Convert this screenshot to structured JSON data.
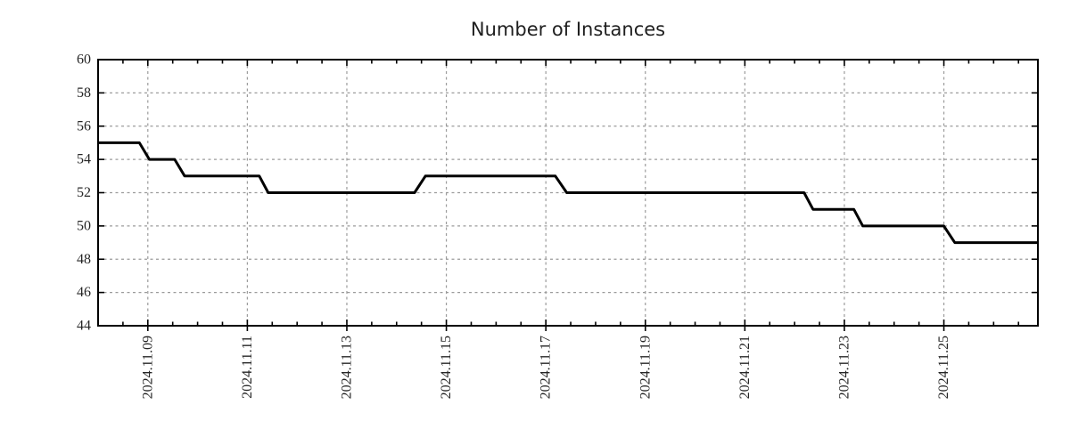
{
  "page": {
    "background": "#ffffff"
  },
  "chart_data": {
    "type": "line",
    "title": "Number of Instances",
    "xlabel": "",
    "ylabel": "",
    "x_unit": "date (November 2024, decimal day of month)",
    "x_range": [
      8.0,
      26.89
    ],
    "y_range": [
      44,
      60
    ],
    "x_major_ticks": [
      9,
      11,
      13,
      15,
      17,
      19,
      21,
      23,
      25
    ],
    "x_tick_labels": [
      "2024.11.09",
      "2024.11.11",
      "2024.11.13",
      "2024.11.15",
      "2024.11.17",
      "2024.11.19",
      "2024.11.21",
      "2024.11.23",
      "2024.11.25"
    ],
    "x_minor_tick_step": 0.5,
    "y_major_ticks": [
      44,
      46,
      48,
      50,
      52,
      54,
      56,
      58,
      60
    ],
    "grid": "dotted gray lines at major ticks, closed box border, mirrored inward ticks",
    "legend": "none",
    "style": {
      "line_color": "#000000",
      "line_width": 3,
      "grid_color": "#9b9b9b",
      "border_color": "#000000",
      "text_color": "#262626",
      "background": "#ffffff"
    },
    "series": [
      {
        "name": "instances",
        "points": [
          [
            8.0,
            55
          ],
          [
            8.83,
            55
          ],
          [
            9.03,
            54
          ],
          [
            9.54,
            54
          ],
          [
            9.74,
            53
          ],
          [
            11.24,
            53
          ],
          [
            11.42,
            52
          ],
          [
            14.36,
            52
          ],
          [
            14.58,
            53
          ],
          [
            17.19,
            53
          ],
          [
            17.42,
            52
          ],
          [
            22.19,
            52
          ],
          [
            22.37,
            51
          ],
          [
            23.19,
            51
          ],
          [
            23.37,
            50
          ],
          [
            25.0,
            50
          ],
          [
            25.22,
            49
          ],
          [
            26.89,
            49
          ]
        ]
      }
    ]
  }
}
